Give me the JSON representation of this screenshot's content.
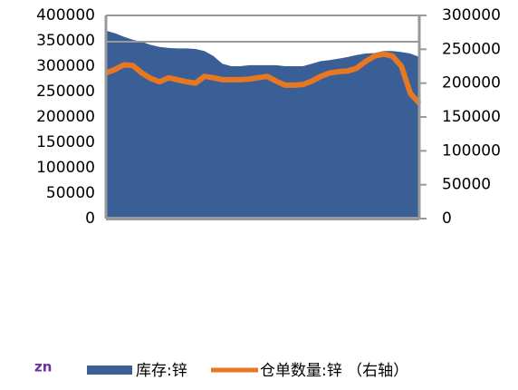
{
  "chart_data": {
    "type": "combo",
    "categories": [
      null,
      null,
      null,
      null,
      null,
      null,
      null,
      null,
      null,
      null,
      null,
      null,
      null,
      null,
      null,
      null,
      null,
      null,
      null,
      null,
      null,
      null,
      null,
      null,
      null,
      null,
      null,
      null,
      null,
      null,
      null,
      null,
      null,
      null,
      null,
      null
    ],
    "series": [
      {
        "name": "库存:锌",
        "type": "area",
        "color": "#3a5f96",
        "values": [
          370000,
          365000,
          358000,
          352000,
          348000,
          342000,
          338000,
          336000,
          335000,
          335000,
          334000,
          330000,
          320000,
          305000,
          300000,
          300000,
          302000,
          302000,
          302000,
          302000,
          300000,
          300000,
          300000,
          305000,
          310000,
          312000,
          315000,
          318000,
          322000,
          325000,
          326000,
          330000,
          330000,
          328000,
          325000,
          318000
        ]
      },
      {
        "name": "仓单数量:锌 （右轴）",
        "type": "line",
        "axis": "y2",
        "color": "#e87722",
        "values": [
          215000,
          220000,
          227000,
          226000,
          215000,
          207000,
          202000,
          208000,
          205000,
          202000,
          200000,
          210000,
          208000,
          205000,
          205000,
          205000,
          206000,
          208000,
          210000,
          203000,
          197000,
          197000,
          198000,
          203000,
          210000,
          215000,
          217000,
          218000,
          222000,
          232000,
          240000,
          243000,
          240000,
          225000,
          185000,
          170000
        ]
      }
    ],
    "ylim": [
      0,
      400000
    ],
    "yticks": [
      0,
      50000,
      100000,
      150000,
      200000,
      250000,
      300000,
      350000,
      400000
    ],
    "y2lim": [
      0,
      300000
    ],
    "y2ticks": [
      0,
      50000,
      100000,
      150000,
      200000,
      250000,
      300000
    ],
    "annotation": "zn",
    "legend": "bottom"
  }
}
